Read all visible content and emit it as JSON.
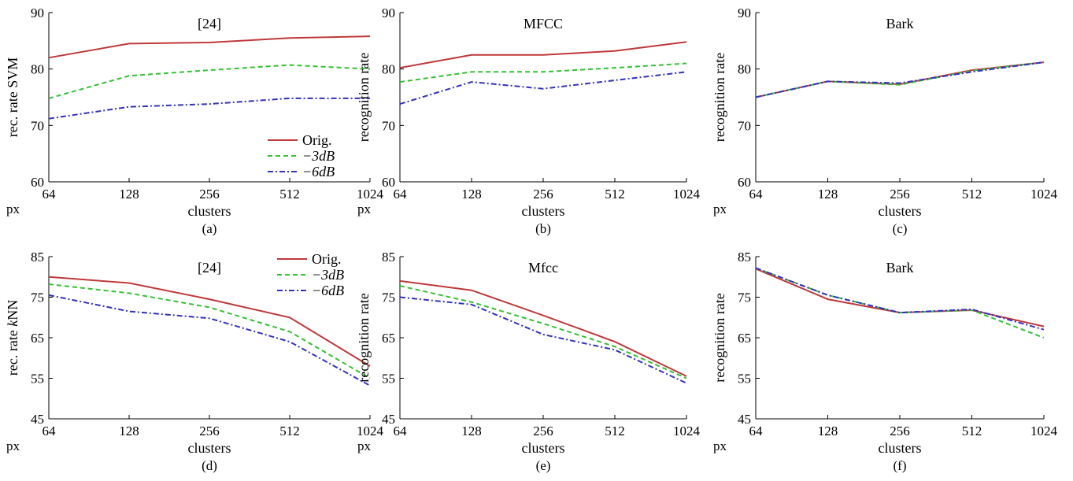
{
  "chart_data": [
    {
      "type": "line",
      "panel_label": "(a)",
      "title": "[24]",
      "xlabel": "clusters",
      "ylabel": "rec. rate SVM",
      "px_label": "px",
      "x": [
        "64",
        "128",
        "256",
        "512",
        "1024"
      ],
      "ylim": [
        60,
        90
      ],
      "yticks": [
        60,
        70,
        80,
        90
      ],
      "legend": "bottom-right",
      "series": [
        {
          "name": "Orig.",
          "values": [
            82.0,
            84.5,
            84.7,
            85.5,
            85.8
          ]
        },
        {
          "name": "−3dB",
          "values": [
            74.8,
            78.8,
            79.8,
            80.7,
            80.0
          ]
        },
        {
          "name": "−6dB",
          "values": [
            71.2,
            73.3,
            73.8,
            74.8,
            74.8
          ]
        }
      ]
    },
    {
      "type": "line",
      "panel_label": "(b)",
      "title": "MFCC",
      "xlabel": "clusters",
      "ylabel": "recognition rate",
      "px_label": "px",
      "x": [
        "64",
        "128",
        "256",
        "512",
        "1024"
      ],
      "ylim": [
        60,
        90
      ],
      "yticks": [
        60,
        70,
        80,
        90
      ],
      "series": [
        {
          "name": "Orig.",
          "values": [
            80.2,
            82.5,
            82.5,
            83.2,
            84.8
          ]
        },
        {
          "name": "−3dB",
          "values": [
            77.7,
            79.5,
            79.5,
            80.2,
            81.0
          ]
        },
        {
          "name": "−6dB",
          "values": [
            73.8,
            77.7,
            76.5,
            78.0,
            79.5
          ]
        }
      ]
    },
    {
      "type": "line",
      "panel_label": "(c)",
      "title": "Bark",
      "xlabel": "clusters",
      "ylabel": "recognition rate",
      "px_label": "px",
      "x": [
        "64",
        "128",
        "256",
        "512",
        "1024"
      ],
      "ylim": [
        60,
        90
      ],
      "yticks": [
        60,
        70,
        80,
        90
      ],
      "series": [
        {
          "name": "Orig.",
          "values": [
            75.0,
            77.8,
            77.3,
            79.8,
            81.2
          ]
        },
        {
          "name": "−3dB",
          "values": [
            75.0,
            77.8,
            77.2,
            79.7,
            81.2
          ]
        },
        {
          "name": "−6dB",
          "values": [
            75.0,
            77.8,
            77.5,
            79.5,
            81.2
          ]
        }
      ]
    },
    {
      "type": "line",
      "panel_label": "(d)",
      "title": "[24]",
      "xlabel": "clusters",
      "ylabel_prefix": "rec. rate ",
      "ylabel_italic": "k",
      "ylabel_suffix": "NN",
      "px_label": "px",
      "x": [
        "64",
        "128",
        "256",
        "512",
        "1024"
      ],
      "ylim": [
        45,
        85
      ],
      "yticks": [
        45,
        55,
        65,
        75,
        85
      ],
      "legend": "top-right",
      "series": [
        {
          "name": "Orig.",
          "values": [
            80.0,
            78.5,
            74.5,
            70.0,
            58.0
          ]
        },
        {
          "name": "−3dB",
          "values": [
            78.2,
            76.0,
            72.5,
            66.5,
            55.0
          ]
        },
        {
          "name": "−6dB",
          "values": [
            75.5,
            71.5,
            69.8,
            64.0,
            53.2
          ]
        }
      ]
    },
    {
      "type": "line",
      "panel_label": "(e)",
      "title": "Mfcc",
      "xlabel": "clusters",
      "ylabel": "recognition rate",
      "px_label": "px",
      "x": [
        "64",
        "128",
        "256",
        "512",
        "1024"
      ],
      "ylim": [
        45,
        85
      ],
      "yticks": [
        45,
        55,
        65,
        75,
        85
      ],
      "series": [
        {
          "name": "Orig.",
          "values": [
            79.0,
            76.7,
            70.5,
            64.0,
            55.5
          ]
        },
        {
          "name": "−3dB",
          "values": [
            77.8,
            73.8,
            68.5,
            62.8,
            55.0
          ]
        },
        {
          "name": "−6dB",
          "values": [
            75.0,
            73.2,
            65.8,
            62.0,
            53.8
          ]
        }
      ]
    },
    {
      "type": "line",
      "panel_label": "(f)",
      "title": "Bark",
      "xlabel": "clusters",
      "ylabel": "recognition rate",
      "px_label": "px",
      "x": [
        "64",
        "128",
        "256",
        "512",
        "1024"
      ],
      "ylim": [
        45,
        85
      ],
      "yticks": [
        45,
        55,
        65,
        75,
        85
      ],
      "series": [
        {
          "name": "Orig.",
          "values": [
            82.0,
            74.5,
            71.2,
            71.8,
            67.8
          ]
        },
        {
          "name": "−3dB",
          "values": [
            82.2,
            75.5,
            71.2,
            71.8,
            65.0
          ]
        },
        {
          "name": "−6dB",
          "values": [
            82.2,
            75.5,
            71.2,
            72.0,
            67.0
          ]
        }
      ]
    }
  ],
  "series_colors": [
    "#c0393b",
    "#33c233",
    "#3232c4"
  ],
  "series_dashes": [
    "",
    "6,4",
    "7,3,2,3"
  ]
}
